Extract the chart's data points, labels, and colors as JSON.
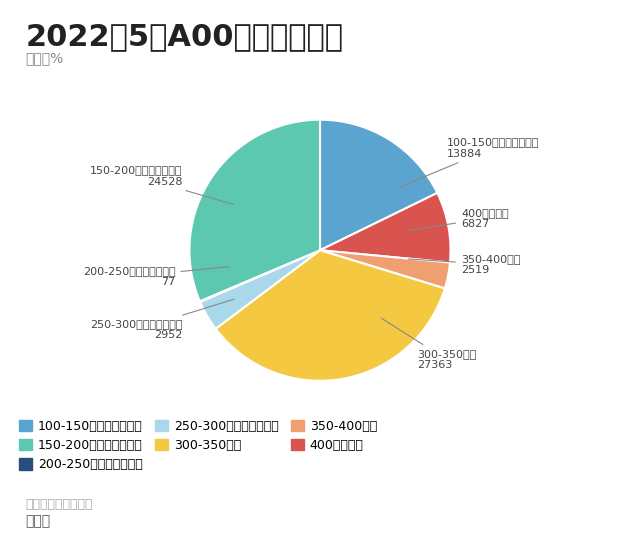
{
  "title": "2022年5月A00续航里程比例",
  "unit": "单位：%",
  "source": "数据来源：零售数据",
  "author": "朱玉龙",
  "slices": [
    {
      "label": "100-150公里（无补贴）",
      "value": 13884,
      "color": "#5BA4CF"
    },
    {
      "label": "400公里以上",
      "value": 6827,
      "color": "#D9534F"
    },
    {
      "label": "350-400公里",
      "value": 2519,
      "color": "#F0A070"
    },
    {
      "label": "300-350公里",
      "value": 27363,
      "color": "#F5C842"
    },
    {
      "label": "250-300公里（无补贴）",
      "value": 2952,
      "color": "#A8D8EA"
    },
    {
      "label": "200-250公里（无补贴）",
      "value": 77,
      "color": "#2B4C7E"
    },
    {
      "label": "150-200公里（无补贴）",
      "value": 24528,
      "color": "#5BC8AF"
    }
  ],
  "legend_order": [
    "100-150公里（无补贴）",
    "150-200公里（无补贴）",
    "200-250公里（无补贴）",
    "250-300公里（无补贴）",
    "300-350公里",
    "350-400公里",
    "400公里以上"
  ],
  "bg_color": "#FFFFFF",
  "title_fontsize": 22,
  "label_fontsize": 9,
  "legend_fontsize": 9
}
